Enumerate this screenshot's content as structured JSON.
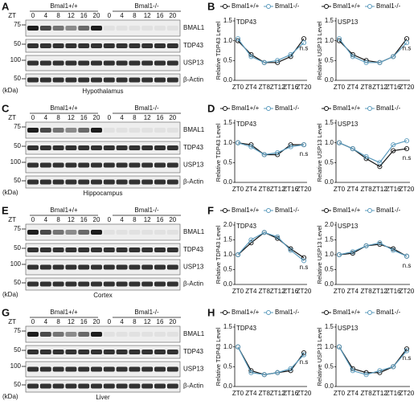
{
  "panels": [
    {
      "blot": {
        "letter": "A",
        "groups": [
          "Bmal1+/+",
          "Bmal1-/-"
        ],
        "zt_label": "ZT",
        "lanes": [
          "0",
          "4",
          "8",
          "12",
          "16",
          "20",
          "0",
          "4",
          "8",
          "12",
          "16",
          "20"
        ],
        "proteins": [
          "BMAL1",
          "TDP43",
          "USP13",
          "β-Actin"
        ],
        "markers": [
          "75",
          "50",
          "100",
          "50"
        ],
        "unit": "(kDa)",
        "tissue": "Hypothalamus"
      },
      "letter": "B",
      "plots": [
        {
          "type": "line",
          "title": "TDP43",
          "y_label": "Relative TDP43 Level",
          "categories": [
            "ZT0",
            "ZT4",
            "ZT8",
            "ZT12",
            "ZT16",
            "ZT20"
          ],
          "series": [
            {
              "name": "Bmal1+/+",
              "color": "#111111",
              "values": [
                1.0,
                0.65,
                0.45,
                0.45,
                0.6,
                1.05
              ]
            },
            {
              "name": "Bmal1-/-",
              "color": "#5b9bbd",
              "values": [
                1.05,
                0.6,
                0.45,
                0.5,
                0.65,
                0.95
              ]
            }
          ],
          "ylim": [
            0,
            1.5
          ],
          "yticks": [
            {
              "value": 0,
              "label": "0.0"
            },
            0.5,
            {
              "value": 1,
              "label": "1.0"
            },
            1.5
          ],
          "annotation": "n.s"
        },
        {
          "type": "line",
          "title": "USP13",
          "y_label": "Relative USP13 Level",
          "categories": [
            "ZT0",
            "ZT4",
            "ZT8",
            "ZT12",
            "ZT16",
            "ZT20"
          ],
          "series": [
            {
              "name": "Bmal1+/+",
              "color": "#111111",
              "values": [
                1.0,
                0.65,
                0.5,
                0.45,
                0.6,
                1.05
              ]
            },
            {
              "name": "Bmal1-/-",
              "color": "#5b9bbd",
              "values": [
                1.05,
                0.6,
                0.45,
                0.45,
                0.6,
                0.95
              ]
            }
          ],
          "ylim": [
            0,
            1.5
          ],
          "yticks": [
            {
              "value": 0,
              "label": "0.0"
            },
            0.5,
            {
              "value": 1,
              "label": "1.0"
            },
            1.5
          ],
          "annotation": "n.s"
        }
      ]
    },
    {
      "blot": {
        "letter": "C",
        "groups": [
          "Bmal1+/+",
          "Bmal1-/-"
        ],
        "zt_label": "ZT",
        "lanes": [
          "0",
          "4",
          "8",
          "12",
          "16",
          "20",
          "0",
          "4",
          "8",
          "12",
          "16",
          "20"
        ],
        "proteins": [
          "BMAL1",
          "TDP43",
          "USP13",
          "β-Actin"
        ],
        "markers": [
          "75",
          "50",
          "100",
          "50"
        ],
        "unit": "(kDa)",
        "tissue": "Hippocampus"
      },
      "letter": "D",
      "plots": [
        {
          "type": "line",
          "title": "TDP43",
          "y_label": "Relative TDP43 Level",
          "categories": [
            "ZT0",
            "ZT4",
            "ZT8",
            "ZT12",
            "ZT16",
            "ZT20"
          ],
          "series": [
            {
              "name": "Bmal1+/+",
              "color": "#111111",
              "values": [
                1.0,
                0.95,
                0.7,
                0.7,
                0.95,
                0.95
              ]
            },
            {
              "name": "Bmal1-/-",
              "color": "#5b9bbd",
              "values": [
                1.0,
                0.9,
                0.7,
                0.75,
                0.9,
                0.95
              ]
            }
          ],
          "ylim": [
            0,
            1.5
          ],
          "yticks": [
            {
              "value": 0,
              "label": "0.0"
            },
            0.5,
            {
              "value": 1,
              "label": "1.0"
            },
            1.5
          ],
          "annotation": "n.s"
        },
        {
          "type": "line",
          "title": "USP13",
          "y_label": "Relative USP13 Level",
          "categories": [
            "ZT0",
            "ZT4",
            "ZT8",
            "ZT12",
            "ZT16",
            "ZT20"
          ],
          "series": [
            {
              "name": "Bmal1+/+",
              "color": "#111111",
              "values": [
                1.0,
                0.85,
                0.6,
                0.4,
                0.8,
                0.85
              ]
            },
            {
              "name": "Bmal1-/-",
              "color": "#5b9bbd",
              "values": [
                1.0,
                0.85,
                0.65,
                0.5,
                0.95,
                1.05
              ]
            }
          ],
          "ylim": [
            0,
            1.5
          ],
          "yticks": [
            {
              "value": 0,
              "label": "0.0"
            },
            0.5,
            {
              "value": 1,
              "label": "1.0"
            },
            1.5
          ],
          "annotation": "n.s"
        }
      ]
    },
    {
      "blot": {
        "letter": "E",
        "groups": [
          "Bmal1+/+",
          "Bmal1-/-"
        ],
        "zt_label": "ZT",
        "lanes": [
          "0",
          "4",
          "8",
          "12",
          "16",
          "20",
          "0",
          "4",
          "8",
          "12",
          "16",
          "20"
        ],
        "proteins": [
          "BMAL1",
          "TDP43",
          "USP13",
          "β-Actin"
        ],
        "markers": [
          "75",
          "50",
          "100",
          "50"
        ],
        "unit": "(kDa)",
        "tissue": "Cortex"
      },
      "letter": "F",
      "plots": [
        {
          "type": "line",
          "title": "TDP43",
          "y_label": "Relative TDP43 Level",
          "categories": [
            "ZT0",
            "ZT4",
            "ZT8",
            "ZT12",
            "ZT16",
            "ZT20"
          ],
          "series": [
            {
              "name": "Bmal1+/+",
              "color": "#111111",
              "values": [
                1.0,
                1.4,
                1.75,
                1.55,
                1.2,
                0.9
              ]
            },
            {
              "name": "Bmal1-/-",
              "color": "#5b9bbd",
              "values": [
                1.0,
                1.5,
                1.75,
                1.6,
                1.15,
                0.8
              ]
            }
          ],
          "ylim": [
            0,
            2
          ],
          "yticks": [
            {
              "value": 0,
              "label": "0.0"
            },
            0.5,
            {
              "value": 1,
              "label": "1.0"
            },
            1.5,
            {
              "value": 2,
              "label": "2.0"
            }
          ],
          "annotation": "n.s"
        },
        {
          "type": "line",
          "title": "USP13",
          "y_label": "Relative USP13 Level",
          "categories": [
            "ZT0",
            "ZT4",
            "ZT8",
            "ZT12",
            "ZT16",
            "ZT20"
          ],
          "series": [
            {
              "name": "Bmal1+/+",
              "color": "#111111",
              "values": [
                1.0,
                1.05,
                1.3,
                1.35,
                1.2,
                0.95
              ]
            },
            {
              "name": "Bmal1-/-",
              "color": "#5b9bbd",
              "values": [
                1.0,
                1.1,
                1.3,
                1.4,
                1.15,
                0.95
              ]
            }
          ],
          "ylim": [
            0,
            2
          ],
          "yticks": [
            {
              "value": 0,
              "label": "0.0"
            },
            0.5,
            {
              "value": 1,
              "label": "1.0"
            },
            1.5,
            {
              "value": 2,
              "label": "2.0"
            }
          ],
          "annotation": "n.s"
        }
      ]
    },
    {
      "blot": {
        "letter": "G",
        "groups": [
          "Bmal1+/+",
          "Bmal1-/-"
        ],
        "zt_label": "ZT",
        "lanes": [
          "0",
          "4",
          "8",
          "12",
          "16",
          "20",
          "0",
          "4",
          "8",
          "12",
          "16",
          "20"
        ],
        "proteins": [
          "BMAL1",
          "TDP43",
          "USP13",
          "β-Actin"
        ],
        "markers": [
          "75",
          "50",
          "100",
          "50"
        ],
        "unit": "(kDa)",
        "tissue": "Liver"
      },
      "letter": "H",
      "plots": [
        {
          "type": "line",
          "title": "TDP43",
          "y_label": "Relative TDP43 Level",
          "categories": [
            "ZT0",
            "ZT4",
            "ZT8",
            "ZT12",
            "ZT16",
            "ZT20"
          ],
          "series": [
            {
              "name": "Bmal1+/+",
              "color": "#111111",
              "values": [
                1.0,
                0.4,
                0.3,
                0.35,
                0.4,
                0.85
              ]
            },
            {
              "name": "Bmal1-/-",
              "color": "#5b9bbd",
              "values": [
                1.0,
                0.35,
                0.3,
                0.35,
                0.45,
                0.8
              ]
            }
          ],
          "ylim": [
            0,
            1.5
          ],
          "yticks": [
            {
              "value": 0,
              "label": "0.0"
            },
            0.5,
            {
              "value": 1,
              "label": "1.0"
            },
            1.5
          ],
          "annotation": "n.s"
        },
        {
          "type": "line",
          "title": "USP13",
          "y_label": "Relative USP13 Level",
          "categories": [
            "ZT0",
            "ZT4",
            "ZT8",
            "ZT12",
            "ZT16",
            "ZT20"
          ],
          "series": [
            {
              "name": "Bmal1+/+",
              "color": "#111111",
              "values": [
                1.0,
                0.45,
                0.35,
                0.35,
                0.5,
                0.95
              ]
            },
            {
              "name": "Bmal1-/-",
              "color": "#5b9bbd",
              "values": [
                1.0,
                0.4,
                0.3,
                0.4,
                0.5,
                0.9
              ]
            }
          ],
          "ylim": [
            0,
            1.5
          ],
          "yticks": [
            {
              "value": 0,
              "label": "0.0"
            },
            0.5,
            {
              "value": 1,
              "label": "1.0"
            },
            1.5
          ],
          "annotation": "n.s"
        }
      ]
    }
  ]
}
